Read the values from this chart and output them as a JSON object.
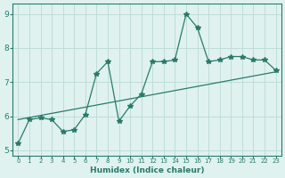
{
  "x": [
    0,
    1,
    2,
    3,
    4,
    5,
    6,
    7,
    8,
    9,
    10,
    11,
    12,
    13,
    14,
    15,
    16,
    17,
    18,
    19,
    20,
    21,
    22,
    23
  ],
  "y": [
    5.2,
    5.9,
    5.95,
    5.9,
    5.55,
    5.6,
    6.05,
    7.25,
    7.6,
    5.85,
    6.3,
    6.65,
    7.6,
    7.6,
    7.65,
    9.0,
    8.6,
    7.6,
    7.65,
    7.75,
    7.75,
    7.65,
    7.65,
    7.35
  ],
  "trend_x": [
    0,
    23
  ],
  "trend_y": [
    5.9,
    7.3
  ],
  "line_color": "#2a7a6a",
  "marker": "*",
  "marker_size": 4,
  "bg_color": "#dff2f0",
  "grid_color": "#c0ddd9",
  "xlabel": "Humidex (Indice chaleur)",
  "ylabel": "",
  "xlim": [
    -0.5,
    23.5
  ],
  "ylim": [
    4.85,
    9.3
  ],
  "yticks": [
    5,
    6,
    7,
    8,
    9
  ],
  "xticks": [
    0,
    1,
    2,
    3,
    4,
    5,
    6,
    7,
    8,
    9,
    10,
    11,
    12,
    13,
    14,
    15,
    16,
    17,
    18,
    19,
    20,
    21,
    22,
    23
  ],
  "title": "",
  "tick_fontsize_x": 5.0,
  "tick_fontsize_y": 6.5,
  "xlabel_fontsize": 6.5
}
